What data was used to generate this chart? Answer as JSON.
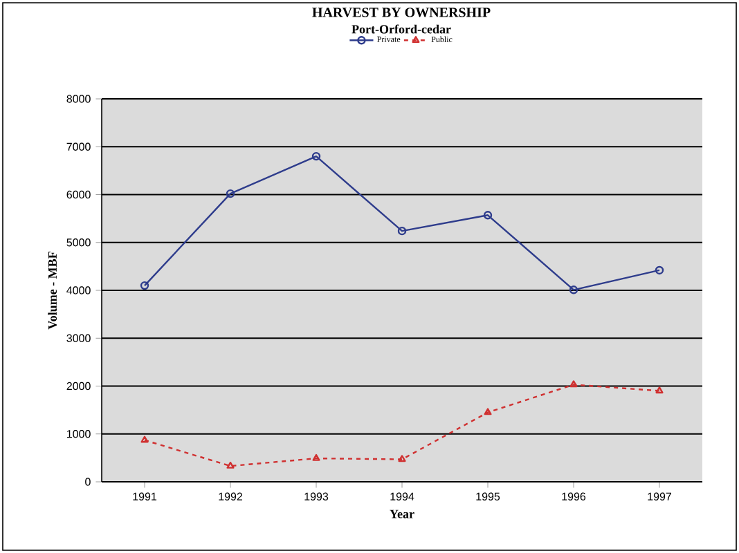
{
  "chart_data": {
    "type": "line",
    "title": "HARVEST BY OWNERSHIP",
    "subtitle": "Port-Orford-cedar",
    "xlabel": "Year",
    "ylabel": "Volume - MBF",
    "categories": [
      "1991",
      "1992",
      "1993",
      "1994",
      "1995",
      "1996",
      "1997"
    ],
    "series": [
      {
        "name": "Private",
        "color": "#2e3c8c",
        "marker": "circle",
        "line_style": "solid",
        "values": [
          4100,
          6020,
          6800,
          5240,
          5570,
          4010,
          4420
        ]
      },
      {
        "name": "Public",
        "color": "#d03030",
        "marker": "triangle",
        "line_style": "dashed",
        "values": [
          870,
          330,
          490,
          470,
          1450,
          2030,
          1900
        ]
      }
    ],
    "ylim": [
      0,
      8000
    ],
    "yticks": [
      0,
      1000,
      2000,
      3000,
      4000,
      5000,
      6000,
      7000,
      8000
    ],
    "grid": "y",
    "legend": "top"
  }
}
